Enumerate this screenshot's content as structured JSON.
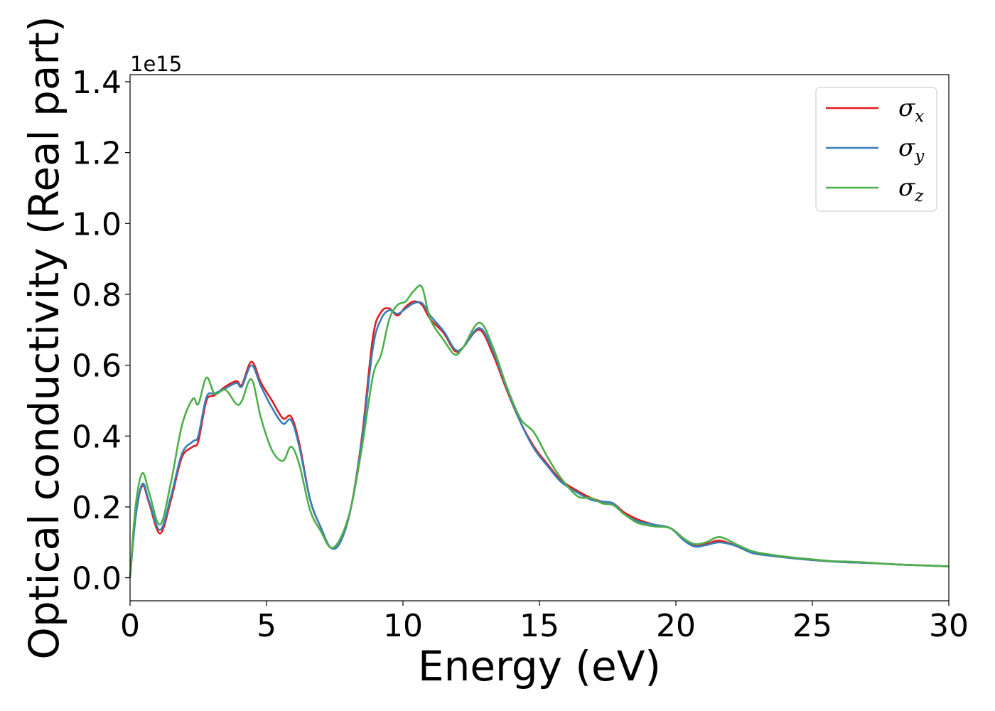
{
  "chart_data": {
    "type": "line",
    "title": "",
    "xlabel": "Energy (eV)",
    "ylabel": "Optical conductivity (Real part)",
    "y_offset_label": "1e15",
    "xlim": [
      0,
      30
    ],
    "ylim": [
      -0.065,
      1.42
    ],
    "x_ticks": [
      0,
      5,
      10,
      15,
      20,
      25,
      30
    ],
    "x_tick_labels": [
      "0",
      "5",
      "10",
      "15",
      "20",
      "25",
      "30"
    ],
    "y_ticks": [
      0.0,
      0.2,
      0.4,
      0.6,
      0.8,
      1.0,
      1.2,
      1.4
    ],
    "y_tick_labels": [
      "0.0",
      "0.2",
      "0.4",
      "0.6",
      "0.8",
      "1.0",
      "1.2",
      "1.4"
    ],
    "grid": false,
    "legend_position": "top-right",
    "series": [
      {
        "name": "σx",
        "legend_symbol": "σ",
        "legend_sub": "x",
        "color": "#e41a1c",
        "x": [
          0,
          0.2,
          0.45,
          0.7,
          1.1,
          1.5,
          1.9,
          2.3,
          2.5,
          2.8,
          3.1,
          3.5,
          3.9,
          4.1,
          4.45,
          4.8,
          5.2,
          5.6,
          5.9,
          6.2,
          6.6,
          7.0,
          7.35,
          7.7,
          8.1,
          8.5,
          8.9,
          9.2,
          9.5,
          9.8,
          10.1,
          10.4,
          10.7,
          11.0,
          11.5,
          11.9,
          12.2,
          12.8,
          13.3,
          13.8,
          14.3,
          14.8,
          15.3,
          15.8,
          16.4,
          16.9,
          17.3,
          17.7,
          18.1,
          18.6,
          19.2,
          19.8,
          20.3,
          20.7,
          21.1,
          21.6,
          22.2,
          22.8,
          23.5,
          24.3,
          25.0,
          25.7,
          26.2,
          27.0,
          28.0,
          29.0,
          30.0
        ],
        "values": [
          0.0,
          0.17,
          0.26,
          0.21,
          0.125,
          0.22,
          0.34,
          0.37,
          0.385,
          0.5,
          0.515,
          0.54,
          0.555,
          0.545,
          0.61,
          0.55,
          0.5,
          0.45,
          0.455,
          0.38,
          0.22,
          0.14,
          0.085,
          0.1,
          0.2,
          0.4,
          0.68,
          0.75,
          0.76,
          0.74,
          0.765,
          0.78,
          0.77,
          0.73,
          0.69,
          0.64,
          0.65,
          0.7,
          0.63,
          0.53,
          0.44,
          0.37,
          0.32,
          0.275,
          0.245,
          0.225,
          0.215,
          0.21,
          0.185,
          0.165,
          0.15,
          0.14,
          0.11,
          0.09,
          0.095,
          0.105,
          0.09,
          0.07,
          0.062,
          0.055,
          0.05,
          0.046,
          0.044,
          0.042,
          0.038,
          0.035,
          0.032
        ]
      },
      {
        "name": "σy",
        "legend_symbol": "σ",
        "legend_sub": "y",
        "color": "#377eb8",
        "x": [
          0,
          0.2,
          0.45,
          0.7,
          1.1,
          1.5,
          1.9,
          2.3,
          2.5,
          2.8,
          3.1,
          3.5,
          3.9,
          4.1,
          4.45,
          4.8,
          5.2,
          5.6,
          5.9,
          6.2,
          6.6,
          7.0,
          7.35,
          7.7,
          8.1,
          8.5,
          8.9,
          9.2,
          9.5,
          9.8,
          10.1,
          10.4,
          10.7,
          11.0,
          11.5,
          11.9,
          12.2,
          12.8,
          13.3,
          13.8,
          14.3,
          14.8,
          15.3,
          15.8,
          16.4,
          16.9,
          17.3,
          17.7,
          18.1,
          18.6,
          19.2,
          19.8,
          20.3,
          20.7,
          21.1,
          21.6,
          22.2,
          22.8,
          23.5,
          24.3,
          25.0,
          25.7,
          26.2,
          27.0,
          28.0,
          29.0,
          30.0
        ],
        "values": [
          0.0,
          0.17,
          0.265,
          0.215,
          0.135,
          0.23,
          0.35,
          0.385,
          0.4,
          0.51,
          0.52,
          0.535,
          0.55,
          0.54,
          0.6,
          0.54,
          0.48,
          0.435,
          0.445,
          0.37,
          0.22,
          0.14,
          0.085,
          0.1,
          0.2,
          0.39,
          0.65,
          0.73,
          0.755,
          0.745,
          0.76,
          0.775,
          0.775,
          0.74,
          0.695,
          0.645,
          0.65,
          0.705,
          0.64,
          0.535,
          0.44,
          0.365,
          0.315,
          0.27,
          0.24,
          0.22,
          0.215,
          0.21,
          0.18,
          0.16,
          0.15,
          0.14,
          0.105,
          0.088,
          0.092,
          0.1,
          0.09,
          0.07,
          0.062,
          0.055,
          0.05,
          0.046,
          0.044,
          0.042,
          0.038,
          0.035,
          0.032
        ]
      },
      {
        "name": "σz",
        "legend_symbol": "σ",
        "legend_sub": "z",
        "color": "#4daf4a",
        "x": [
          0,
          0.2,
          0.45,
          0.7,
          1.1,
          1.5,
          1.9,
          2.3,
          2.5,
          2.8,
          3.1,
          3.5,
          3.9,
          4.1,
          4.45,
          4.8,
          5.2,
          5.6,
          5.9,
          6.2,
          6.6,
          7.0,
          7.35,
          7.7,
          8.1,
          8.5,
          8.9,
          9.2,
          9.5,
          9.8,
          10.1,
          10.4,
          10.7,
          11.0,
          11.5,
          11.9,
          12.2,
          12.8,
          13.3,
          13.8,
          14.3,
          14.8,
          15.3,
          15.8,
          16.4,
          16.9,
          17.3,
          17.7,
          18.1,
          18.6,
          19.2,
          19.8,
          20.3,
          20.7,
          21.1,
          21.6,
          22.2,
          22.8,
          23.5,
          24.3,
          25.0,
          25.7,
          26.2,
          27.0,
          28.0,
          29.0,
          30.0
        ],
        "values": [
          0.0,
          0.2,
          0.295,
          0.24,
          0.15,
          0.27,
          0.43,
          0.505,
          0.49,
          0.565,
          0.52,
          0.53,
          0.49,
          0.5,
          0.56,
          0.45,
          0.36,
          0.33,
          0.37,
          0.32,
          0.19,
          0.13,
          0.085,
          0.11,
          0.2,
          0.37,
          0.57,
          0.63,
          0.73,
          0.77,
          0.78,
          0.81,
          0.82,
          0.73,
          0.67,
          0.63,
          0.65,
          0.72,
          0.65,
          0.54,
          0.45,
          0.41,
          0.34,
          0.28,
          0.23,
          0.225,
          0.21,
          0.205,
          0.18,
          0.155,
          0.145,
          0.14,
          0.11,
          0.095,
          0.1,
          0.115,
          0.095,
          0.075,
          0.065,
          0.057,
          0.052,
          0.047,
          0.046,
          0.043,
          0.038,
          0.035,
          0.032
        ]
      }
    ]
  }
}
